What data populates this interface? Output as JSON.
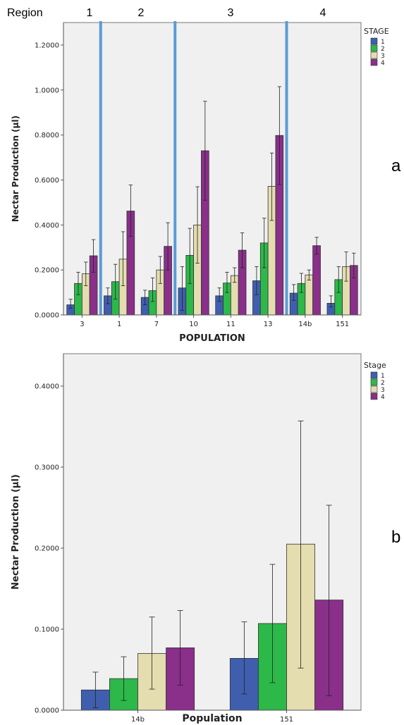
{
  "region_header": {
    "label": "Region",
    "regions": [
      "1",
      "2",
      "3",
      "4"
    ]
  },
  "panel_letters": [
    "a",
    "b"
  ],
  "chart_data": [
    {
      "type": "bar",
      "ylabel": "Nectar Production (µl)",
      "xlabel": "POPULATION",
      "legend_title": "STAGE",
      "legend_position": "top-right",
      "categories": [
        "3",
        "1",
        "7",
        "10",
        "11",
        "13",
        "14b",
        "151"
      ],
      "ylim": [
        0,
        1.3
      ],
      "yticks": [
        "0.0000",
        "0.2000",
        "0.4000",
        "0.6000",
        "0.8000",
        "1.0000",
        "1.2000"
      ],
      "series": [
        {
          "name": "1",
          "color": "#3f5fae",
          "values": [
            0.045,
            0.085,
            0.078,
            0.12,
            0.085,
            0.152,
            0.097,
            0.052
          ],
          "err_low": [
            0.03,
            0.05,
            0.045,
            0.02,
            0.06,
            0.09,
            0.065,
            0.035
          ],
          "err_high": [
            0.07,
            0.12,
            0.11,
            0.215,
            0.12,
            0.215,
            0.135,
            0.085
          ]
        },
        {
          "name": "2",
          "color": "#2db84a",
          "values": [
            0.14,
            0.148,
            0.108,
            0.265,
            0.142,
            0.32,
            0.14,
            0.157
          ],
          "err_low": [
            0.09,
            0.07,
            0.06,
            0.14,
            0.1,
            0.21,
            0.1,
            0.1
          ],
          "err_high": [
            0.19,
            0.225,
            0.165,
            0.385,
            0.19,
            0.43,
            0.185,
            0.215
          ]
        },
        {
          "name": "3",
          "color": "#e4ddb0",
          "values": [
            0.183,
            0.248,
            0.2,
            0.4,
            0.175,
            0.572,
            0.178,
            0.215
          ],
          "err_low": [
            0.13,
            0.13,
            0.14,
            0.23,
            0.145,
            0.42,
            0.155,
            0.15
          ],
          "err_high": [
            0.235,
            0.37,
            0.26,
            0.57,
            0.21,
            0.72,
            0.2,
            0.28
          ]
        },
        {
          "name": "4",
          "color": "#8a2f8a",
          "values": [
            0.263,
            0.462,
            0.305,
            0.73,
            0.288,
            0.798,
            0.308,
            0.22
          ],
          "err_low": [
            0.19,
            0.35,
            0.2,
            0.51,
            0.21,
            0.58,
            0.27,
            0.165
          ],
          "err_high": [
            0.335,
            0.578,
            0.41,
            0.95,
            0.365,
            1.015,
            0.345,
            0.275
          ]
        }
      ],
      "region_dividers_after_category": [
        0,
        2,
        5
      ]
    },
    {
      "type": "bar",
      "ylabel": "Nectar Production (µl)",
      "xlabel": "Population",
      "legend_title": "Stage",
      "legend_position": "top-right",
      "categories": [
        "14b",
        "151"
      ],
      "ylim": [
        0,
        0.44
      ],
      "yticks": [
        "0.0000",
        "0.1000",
        "0.2000",
        "0.3000",
        "0.4000"
      ],
      "series": [
        {
          "name": "1",
          "color": "#3f5fae",
          "values": [
            0.025,
            0.064
          ],
          "err_low": [
            0.003,
            0.02
          ],
          "err_high": [
            0.047,
            0.109
          ]
        },
        {
          "name": "2",
          "color": "#2db84a",
          "values": [
            0.039,
            0.107
          ],
          "err_low": [
            0.012,
            0.034
          ],
          "err_high": [
            0.066,
            0.18
          ]
        },
        {
          "name": "3",
          "color": "#e4ddb0",
          "values": [
            0.07,
            0.205
          ],
          "err_low": [
            0.026,
            0.052
          ],
          "err_high": [
            0.115,
            0.357
          ]
        },
        {
          "name": "4",
          "color": "#8a2f8a",
          "values": [
            0.077,
            0.136
          ],
          "err_low": [
            0.031,
            0.018
          ],
          "err_high": [
            0.123,
            0.253
          ]
        }
      ]
    }
  ]
}
